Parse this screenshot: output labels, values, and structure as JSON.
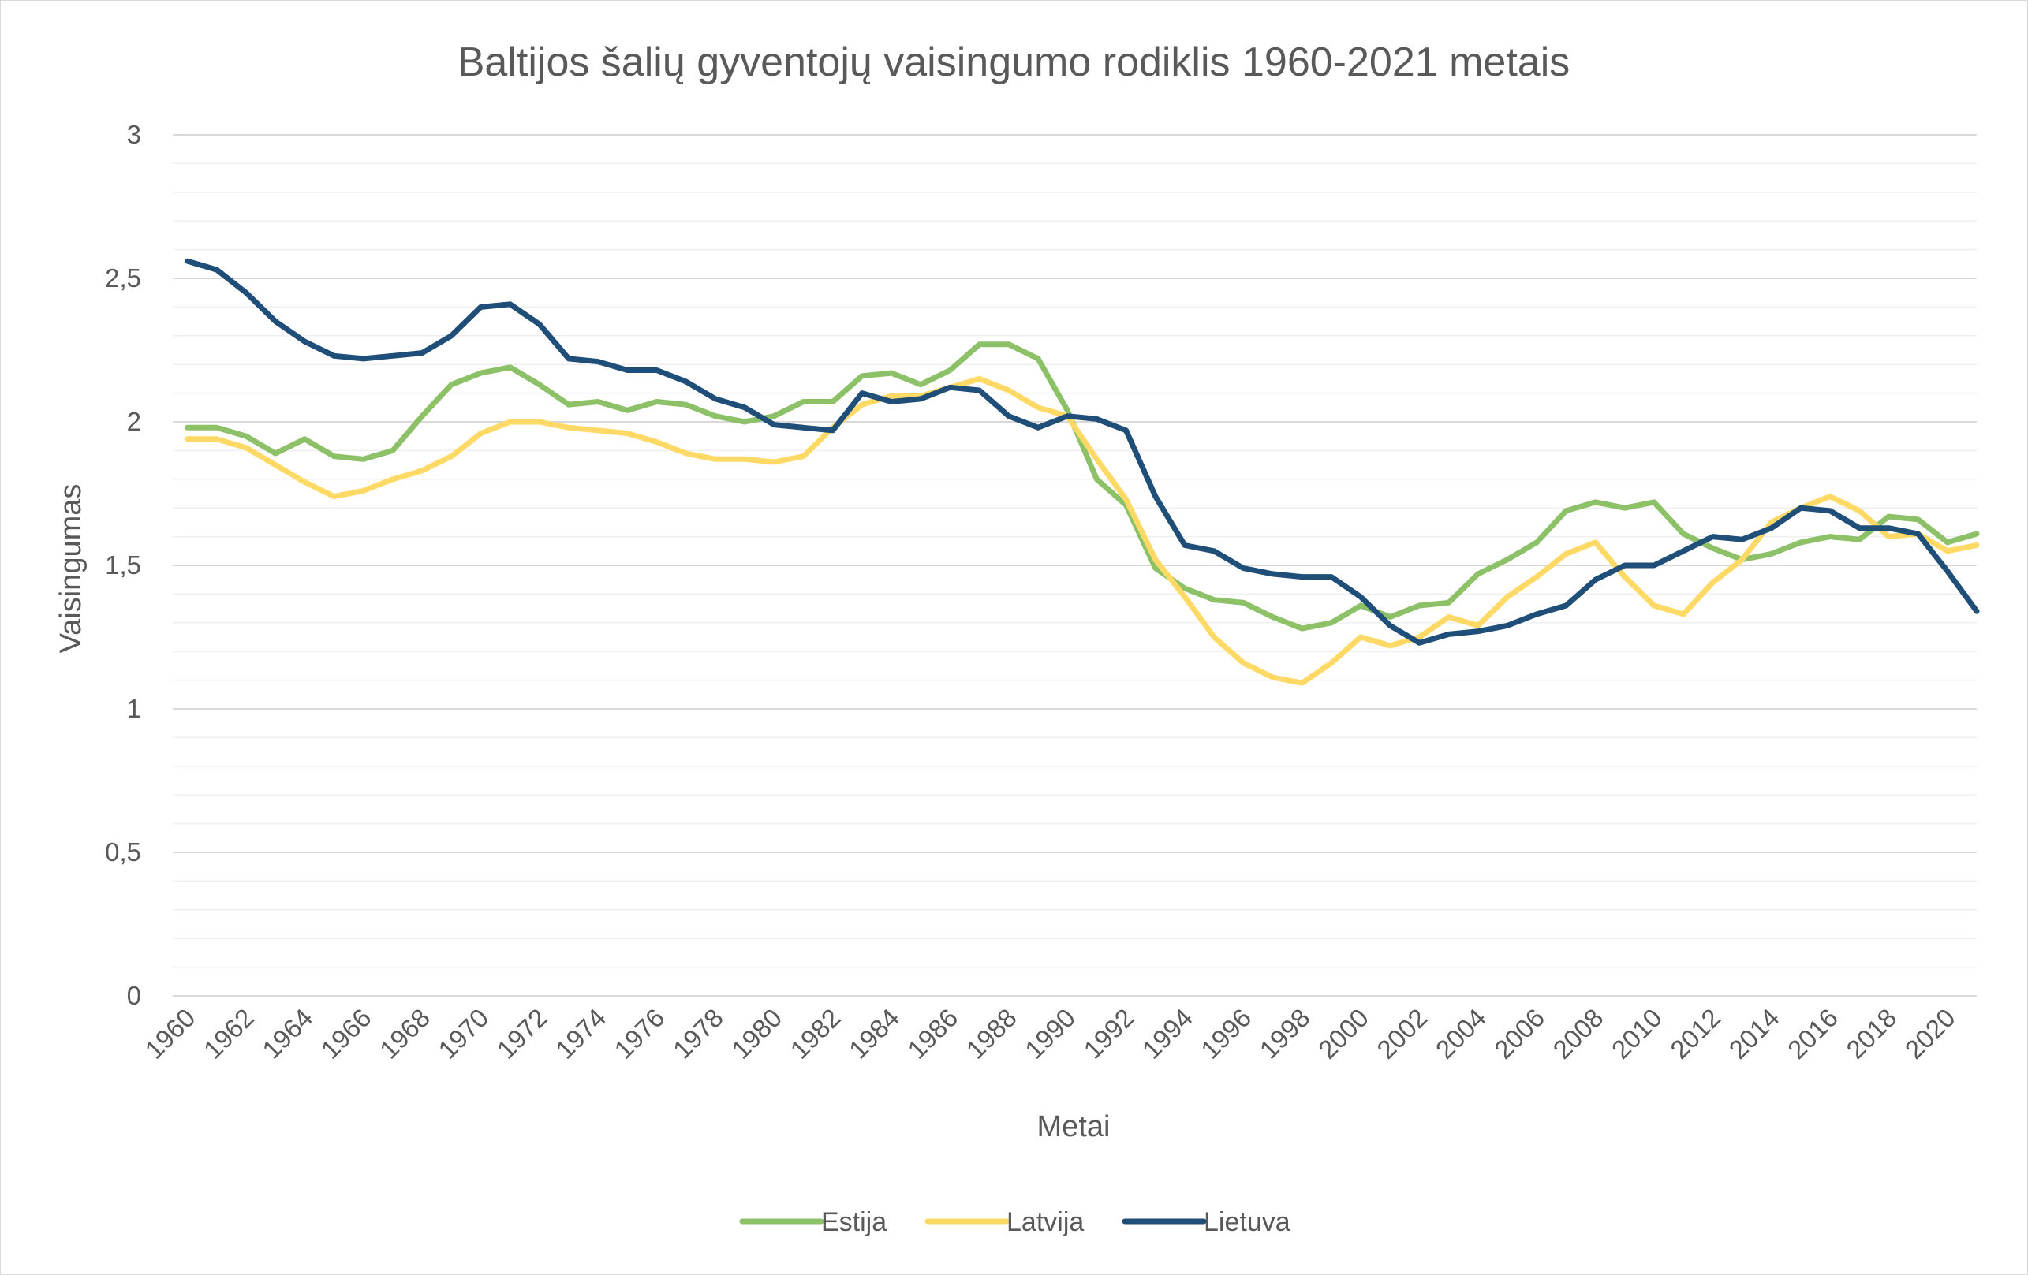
{
  "chart_data": {
    "type": "line",
    "title": "Baltijos šalių gyventojų vaisingumo rodiklis 1960-2021 metais",
    "xlabel": "Metai",
    "ylabel": "Vaisingumas",
    "ylim": [
      0,
      3
    ],
    "y_ticks": [
      "0",
      "0,5",
      "1",
      "1,5",
      "2",
      "2,5",
      "3"
    ],
    "x_start": 1960,
    "x_end": 2021,
    "x_tick_labels": [
      "1960",
      "1962",
      "1964",
      "1966",
      "1968",
      "1970",
      "1972",
      "1974",
      "1976",
      "1978",
      "1980",
      "1982",
      "1984",
      "1986",
      "1988",
      "1990",
      "1992",
      "1994",
      "1996",
      "1998",
      "2000",
      "2002",
      "2004",
      "2006",
      "2008",
      "2010",
      "2012",
      "2014",
      "2016",
      "2018",
      "2020"
    ],
    "grid": true,
    "legend_position": "bottom",
    "series": [
      {
        "name": "Estija",
        "color": "#8cc168",
        "values": [
          1.98,
          1.98,
          1.95,
          1.89,
          1.94,
          1.88,
          1.87,
          1.9,
          2.02,
          2.13,
          2.17,
          2.19,
          2.13,
          2.06,
          2.07,
          2.04,
          2.07,
          2.06,
          2.02,
          2.0,
          2.02,
          2.07,
          2.07,
          2.16,
          2.17,
          2.13,
          2.18,
          2.27,
          2.27,
          2.22,
          2.04,
          1.8,
          1.71,
          1.49,
          1.42,
          1.38,
          1.37,
          1.32,
          1.28,
          1.3,
          1.36,
          1.32,
          1.36,
          1.37,
          1.47,
          1.52,
          1.58,
          1.69,
          1.72,
          1.7,
          1.72,
          1.61,
          1.56,
          1.52,
          1.54,
          1.58,
          1.6,
          1.59,
          1.67,
          1.66,
          1.58,
          1.61
        ]
      },
      {
        "name": "Latvija",
        "color": "#ffd966",
        "values": [
          1.94,
          1.94,
          1.91,
          1.85,
          1.79,
          1.74,
          1.76,
          1.8,
          1.83,
          1.88,
          1.96,
          2.0,
          2.0,
          1.98,
          1.97,
          1.96,
          1.93,
          1.89,
          1.87,
          1.87,
          1.86,
          1.88,
          1.98,
          2.06,
          2.09,
          2.09,
          2.12,
          2.15,
          2.11,
          2.05,
          2.02,
          1.87,
          1.73,
          1.52,
          1.39,
          1.25,
          1.16,
          1.11,
          1.09,
          1.16,
          1.25,
          1.22,
          1.25,
          1.32,
          1.29,
          1.39,
          1.46,
          1.54,
          1.58,
          1.46,
          1.36,
          1.33,
          1.44,
          1.52,
          1.65,
          1.7,
          1.74,
          1.69,
          1.6,
          1.61,
          1.55,
          1.57
        ]
      },
      {
        "name": "Lietuva",
        "color": "#1f4e79",
        "values": [
          2.56,
          2.53,
          2.45,
          2.35,
          2.28,
          2.23,
          2.22,
          2.23,
          2.24,
          2.3,
          2.4,
          2.41,
          2.34,
          2.22,
          2.21,
          2.18,
          2.18,
          2.14,
          2.08,
          2.05,
          1.99,
          1.98,
          1.97,
          2.1,
          2.07,
          2.08,
          2.12,
          2.11,
          2.02,
          1.98,
          2.02,
          2.01,
          1.97,
          1.74,
          1.57,
          1.55,
          1.49,
          1.47,
          1.46,
          1.46,
          1.39,
          1.29,
          1.23,
          1.26,
          1.27,
          1.29,
          1.33,
          1.36,
          1.45,
          1.5,
          1.5,
          1.55,
          1.6,
          1.59,
          1.63,
          1.7,
          1.69,
          1.63,
          1.63,
          1.61,
          1.48,
          1.34
        ]
      }
    ]
  }
}
